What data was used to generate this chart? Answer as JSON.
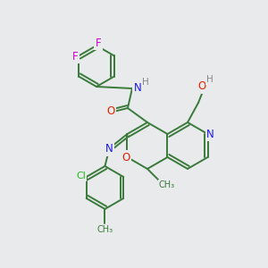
{
  "bg_color": "#e8eaec",
  "bond_color": "#3a7a3a",
  "atom_colors": {
    "N": "#1a1aee",
    "O": "#dd2200",
    "F": "#cc00cc",
    "Cl": "#22bb22",
    "H": "#888888",
    "C": "#3a7a3a"
  },
  "lw": 1.4,
  "fs": 8.5,
  "figsize": [
    3.0,
    3.0
  ],
  "dpi": 100
}
